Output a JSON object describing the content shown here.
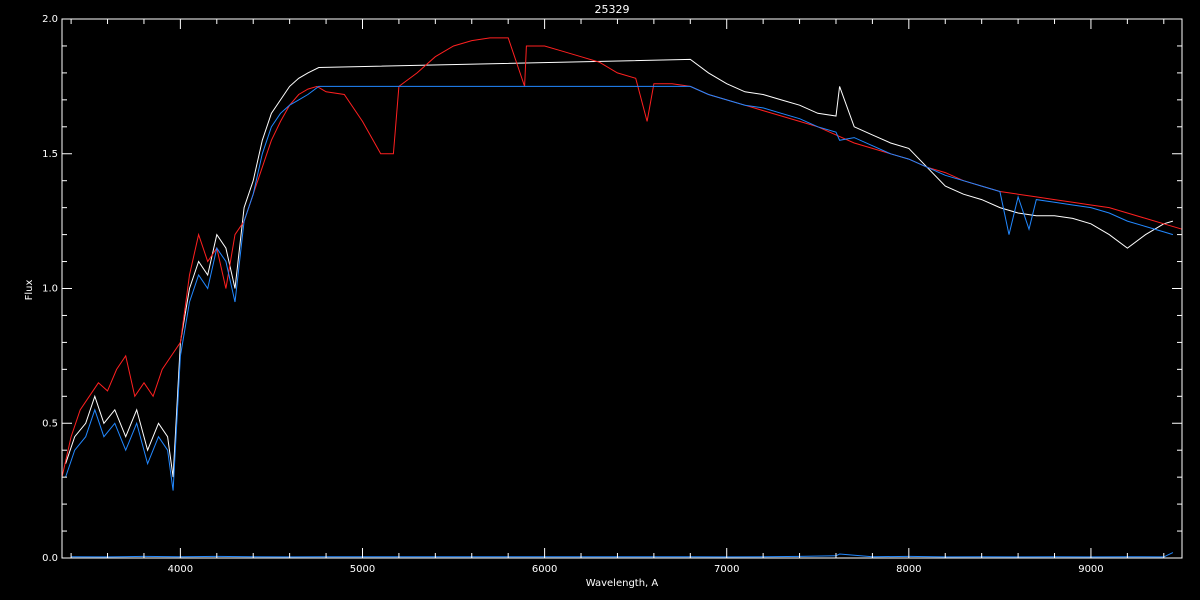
{
  "chart_data": {
    "type": "line",
    "title": "25329",
    "xlabel": "Wavelength, A",
    "ylabel": "Flux",
    "xlim": [
      3350,
      9500
    ],
    "ylim": [
      0.0,
      2.0
    ],
    "xticks": [
      4000,
      5000,
      6000,
      7000,
      8000,
      9000
    ],
    "yticks": [
      0.0,
      0.5,
      1.0,
      1.5,
      2.0
    ],
    "xtick_labels": [
      "4000",
      "5000",
      "6000",
      "7000",
      "8000",
      "9000"
    ],
    "ytick_labels": [
      "0.0",
      "0.5",
      "1.0",
      "1.5",
      "2.0"
    ],
    "grid": false,
    "background": "#000000",
    "axis_color": "#ffffff",
    "series": [
      {
        "color": "#ffffff",
        "x": [
          3370,
          3420,
          3480,
          3530,
          3580,
          3640,
          3700,
          3760,
          3820,
          3880,
          3930,
          3960,
          4000,
          4050,
          4100,
          4150,
          4200,
          4250,
          4300,
          4350,
          4400,
          4450,
          4500,
          4550,
          4600,
          4650,
          4700,
          4760,
          6800,
          6900,
          7000,
          7100,
          7200,
          7300,
          7400,
          7500,
          7600,
          7620,
          7700,
          7800,
          7900,
          8000,
          8100,
          8200,
          8300,
          8400,
          8500,
          8600,
          8700,
          8800,
          8900,
          9000,
          9100,
          9200,
          9300,
          9400,
          9450
        ],
        "y": [
          0.35,
          0.45,
          0.5,
          0.6,
          0.5,
          0.55,
          0.45,
          0.55,
          0.4,
          0.5,
          0.45,
          0.3,
          0.8,
          1.0,
          1.1,
          1.05,
          1.2,
          1.15,
          1.0,
          1.3,
          1.4,
          1.55,
          1.65,
          1.7,
          1.75,
          1.78,
          1.8,
          1.82,
          1.85,
          1.8,
          1.76,
          1.73,
          1.72,
          1.7,
          1.68,
          1.65,
          1.64,
          1.75,
          1.6,
          1.57,
          1.54,
          1.52,
          1.45,
          1.38,
          1.35,
          1.33,
          1.3,
          1.28,
          1.27,
          1.27,
          1.26,
          1.24,
          1.2,
          1.15,
          1.2,
          1.24,
          1.25
        ]
      },
      {
        "color": "#ff2020",
        "x": [
          3350,
          3400,
          3450,
          3500,
          3550,
          3600,
          3650,
          3700,
          3750,
          3800,
          3850,
          3900,
          3950,
          4000,
          4050,
          4100,
          4150,
          4200,
          4250,
          4300,
          4350,
          4400,
          4450,
          4500,
          4550,
          4600,
          4650,
          4700,
          4750,
          4800,
          4900,
          5000,
          5100,
          5170,
          5200,
          5300,
          5400,
          5500,
          5600,
          5700,
          5800,
          5890,
          5900,
          6000,
          6100,
          6200,
          6300,
          6400,
          6500,
          6563,
          6600,
          6700,
          6800,
          6900,
          7000,
          7100,
          7200,
          7300,
          7400,
          7500,
          7600,
          7700,
          7800,
          7900,
          8000,
          8100,
          8200,
          8300,
          8400,
          8500,
          8600,
          8700,
          8800,
          8900,
          9000,
          9100,
          9200,
          9300,
          9400,
          9500
        ],
        "y": [
          0.3,
          0.45,
          0.55,
          0.6,
          0.65,
          0.62,
          0.7,
          0.75,
          0.6,
          0.65,
          0.6,
          0.7,
          0.75,
          0.8,
          1.05,
          1.2,
          1.1,
          1.15,
          1.0,
          1.2,
          1.25,
          1.35,
          1.45,
          1.55,
          1.62,
          1.68,
          1.72,
          1.74,
          1.75,
          1.73,
          1.72,
          1.62,
          1.5,
          1.5,
          1.75,
          1.8,
          1.86,
          1.9,
          1.92,
          1.93,
          1.93,
          1.75,
          1.9,
          1.9,
          1.88,
          1.86,
          1.84,
          1.8,
          1.78,
          1.62,
          1.76,
          1.76,
          1.75,
          1.72,
          1.7,
          1.68,
          1.66,
          1.64,
          1.62,
          1.6,
          1.57,
          1.54,
          1.52,
          1.5,
          1.48,
          1.45,
          1.43,
          1.4,
          1.38,
          1.36,
          1.35,
          1.34,
          1.33,
          1.32,
          1.31,
          1.3,
          1.28,
          1.26,
          1.24,
          1.22
        ]
      },
      {
        "color": "#2288ff",
        "x": [
          3370,
          3420,
          3480,
          3530,
          3580,
          3640,
          3700,
          3760,
          3820,
          3880,
          3930,
          3960,
          4000,
          4050,
          4100,
          4150,
          4200,
          4250,
          4300,
          4350,
          4400,
          4450,
          4500,
          4550,
          4600,
          4650,
          4700,
          4760,
          6800,
          6900,
          7000,
          7100,
          7200,
          7300,
          7400,
          7500,
          7600,
          7620,
          7700,
          7800,
          7900,
          8000,
          8100,
          8200,
          8300,
          8400,
          8500,
          8550,
          8600,
          8660,
          8700,
          8800,
          8900,
          9000,
          9100,
          9200,
          9300,
          9400,
          9450
        ],
        "y": [
          0.3,
          0.4,
          0.45,
          0.55,
          0.45,
          0.5,
          0.4,
          0.5,
          0.35,
          0.45,
          0.4,
          0.25,
          0.75,
          0.95,
          1.05,
          1.0,
          1.15,
          1.1,
          0.95,
          1.25,
          1.35,
          1.5,
          1.6,
          1.65,
          1.68,
          1.7,
          1.72,
          1.75,
          1.75,
          1.72,
          1.7,
          1.68,
          1.67,
          1.65,
          1.63,
          1.6,
          1.58,
          1.55,
          1.56,
          1.53,
          1.5,
          1.48,
          1.45,
          1.42,
          1.4,
          1.38,
          1.36,
          1.2,
          1.34,
          1.22,
          1.33,
          1.32,
          1.31,
          1.3,
          1.28,
          1.25,
          1.23,
          1.21,
          1.2
        ]
      },
      {
        "color": "#2288ff",
        "x": [
          3400,
          3600,
          3800,
          4000,
          4200,
          4400,
          4600,
          4760,
          6800,
          7000,
          7200,
          7400,
          7600,
          7620,
          7800,
          8000,
          8200,
          8400,
          8600,
          8800,
          9000,
          9200,
          9400,
          9450
        ],
        "y": [
          0.005,
          0.004,
          0.006,
          0.005,
          0.006,
          0.005,
          0.004,
          0.005,
          0.005,
          0.004,
          0.005,
          0.006,
          0.008,
          0.015,
          0.005,
          0.006,
          0.004,
          0.005,
          0.004,
          0.005,
          0.004,
          0.005,
          0.004,
          0.02
        ]
      }
    ]
  }
}
